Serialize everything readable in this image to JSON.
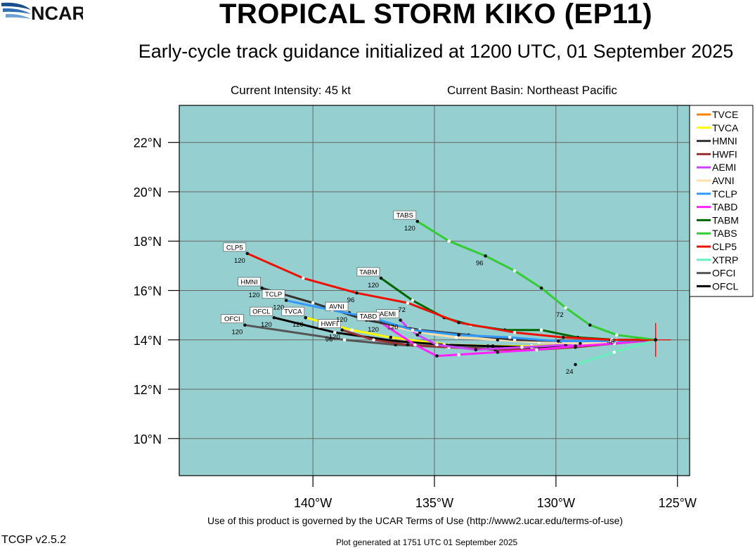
{
  "header": {
    "title": "TROPICAL STORM KIKO (EP11)",
    "subtitle": "Early-cycle track guidance initialized at 1200 UTC, 01 September 2025",
    "intensity": "Current Intensity: 45 kt",
    "basin": "Current Basin: Northeast Pacific"
  },
  "footer": {
    "terms": "Use of this product is governed by the UCAR Terms of Use (http://www2.ucar.edu/terms-of-use)",
    "version": "TCGP v2.5.2",
    "generated": "Plot generated at 1751 UTC   01 September 2025",
    "logo": "NCAR"
  },
  "colors": {
    "ocean": "#96cfcf",
    "grid": "#666666",
    "initial_marker": "#ff0000"
  },
  "chart_data": {
    "type": "line",
    "x_axis": {
      "range": [
        -145.5,
        -124.5
      ],
      "ticks": [
        -140,
        -135,
        -130,
        -125
      ],
      "tick_labels": [
        "140°W",
        "135°W",
        "130°W",
        "125°W"
      ]
    },
    "y_axis": {
      "range": [
        8.5,
        23.5
      ],
      "ticks": [
        10,
        12,
        14,
        16,
        18,
        20,
        22
      ],
      "tick_labels": [
        "10°N",
        "12°N",
        "14°N",
        "16°N",
        "18°N",
        "20°N",
        "22°N"
      ]
    },
    "grid": true,
    "legend_position": "top-right",
    "initial_position": {
      "lon": -125.9,
      "lat": 14.0
    },
    "series": [
      {
        "name": "TVCE",
        "color": "#ff8000",
        "lon": [
          -125.9,
          -127.6,
          -129.4,
          -131.0,
          -132.6,
          -134.4,
          -136.8,
          -138.4,
          -140.3
        ],
        "lat": [
          14.0,
          13.9,
          13.8,
          13.75,
          13.75,
          13.8,
          14.1,
          14.4,
          14.9
        ],
        "hour_labels": []
      },
      {
        "name": "TVCA",
        "color": "#ffff00",
        "lon": [
          -125.9,
          -127.6,
          -129.4,
          -131.0,
          -132.6,
          -134.4,
          -136.8,
          -138.4,
          -140.3
        ],
        "lat": [
          14.0,
          13.9,
          13.8,
          13.75,
          13.75,
          13.8,
          14.1,
          14.4,
          14.9
        ],
        "hour_labels": [
          {
            "hr": "120",
            "i": 8,
            "box": "TVCA"
          }
        ]
      },
      {
        "name": "HMNI",
        "color": "#333333",
        "lon": [
          -125.9,
          -127.8,
          -129.8,
          -131.7,
          -133.6,
          -135.6,
          -137.8,
          -140.0,
          -142.1
        ],
        "lat": [
          14.0,
          13.95,
          13.95,
          14.0,
          14.2,
          14.4,
          14.8,
          15.5,
          16.1
        ],
        "hour_labels": [
          {
            "hr": "120",
            "i": 8,
            "box": "HMNI"
          }
        ]
      },
      {
        "name": "HWFI",
        "color": "#993333",
        "lon": [
          -125.9,
          -127.6,
          -129.2,
          -130.8,
          -132.5,
          -134.4,
          -136.1,
          -137.5,
          -138.8
        ],
        "lat": [
          14.0,
          13.85,
          13.7,
          13.6,
          13.6,
          13.7,
          13.8,
          14.0,
          14.4
        ],
        "hour_labels": [
          {
            "hr": "120",
            "i": 8,
            "box": "HWFI"
          }
        ]
      },
      {
        "name": "AEMI",
        "color": "#cc44ff",
        "lon": [
          -125.9,
          -127.7,
          -129.6,
          -131.4,
          -133.3,
          -134.9,
          -135.7,
          -136.1,
          -136.4
        ],
        "lat": [
          14.0,
          13.9,
          13.8,
          13.7,
          13.6,
          13.8,
          14.2,
          14.5,
          14.8
        ],
        "hour_labels": [
          {
            "hr": "120",
            "i": 8,
            "box": "AEMI"
          }
        ]
      },
      {
        "name": "AVNI",
        "color": "#ffdead",
        "lon": [
          -125.9,
          -127.4,
          -129.0,
          -130.7,
          -132.4,
          -134.1,
          -135.6,
          -137.0,
          -138.5
        ],
        "lat": [
          14.0,
          13.9,
          13.85,
          13.9,
          14.0,
          14.1,
          14.3,
          14.6,
          15.1
        ],
        "hour_labels": [
          {
            "hr": "120",
            "i": 8,
            "box": "AVNI"
          }
        ]
      },
      {
        "name": "TCLP",
        "color": "#3399ff",
        "lon": [
          -125.9,
          -127.8,
          -129.9,
          -131.9,
          -134.0,
          -135.9,
          -137.6,
          -139.2,
          -141.1
        ],
        "lat": [
          14.0,
          13.95,
          13.95,
          14.1,
          14.2,
          14.4,
          14.9,
          15.2,
          15.6
        ],
        "hour_labels": [
          {
            "hr": "120",
            "i": 8,
            "box": "TCLP"
          }
        ]
      },
      {
        "name": "TABD",
        "color": "#ff22ff",
        "lon": [
          -125.9,
          -127.6,
          -129.2,
          -130.8,
          -132.4,
          -134.0,
          -134.9,
          -135.8,
          -137.2
        ],
        "lat": [
          14.0,
          13.85,
          13.75,
          13.6,
          13.5,
          13.4,
          13.35,
          13.8,
          14.7
        ],
        "hour_labels": [
          {
            "hr": "120",
            "i": 8,
            "box": "TABD"
          }
        ]
      },
      {
        "name": "TABM",
        "color": "#006600",
        "lon": [
          -125.9,
          -127.5,
          -129.1,
          -130.6,
          -132.1,
          -133.5,
          -134.6,
          -135.9,
          -137.2
        ],
        "lat": [
          14.0,
          14.0,
          14.1,
          14.4,
          14.4,
          14.6,
          14.9,
          15.6,
          16.5
        ],
        "hour_labels": [
          {
            "hr": "120",
            "i": 8,
            "box": "TABM"
          }
        ]
      },
      {
        "name": "TABS",
        "color": "#33cc33",
        "lon": [
          -125.9,
          -127.5,
          -128.6,
          -129.6,
          -130.6,
          -131.7,
          -132.9,
          -134.4,
          -135.7
        ],
        "lat": [
          14.0,
          14.2,
          14.6,
          15.3,
          16.1,
          16.8,
          17.4,
          18.0,
          18.8
        ],
        "hour_labels": [
          {
            "hr": "120",
            "i": 8,
            "box": "TABS"
          },
          {
            "hr": "96",
            "i": 6
          },
          {
            "hr": "72",
            "i": 3
          },
          {
            "hr": "48",
            "i": 1
          }
        ]
      },
      {
        "name": "CLP5",
        "color": "#ee1100",
        "lon": [
          -125.9,
          -127.7,
          -129.7,
          -131.7,
          -134.0,
          -136.1,
          -138.2,
          -140.4,
          -142.7
        ],
        "lat": [
          14.0,
          14.0,
          14.1,
          14.3,
          14.7,
          15.5,
          15.9,
          16.5,
          17.5
        ],
        "hour_labels": [
          {
            "hr": "120",
            "i": 8,
            "box": "CLP5"
          },
          {
            "hr": "96",
            "i": 6
          },
          {
            "hr": "72",
            "i": 5
          }
        ]
      },
      {
        "name": "XTRP",
        "color": "#66eebb",
        "lon": [
          -125.9,
          -127.6,
          -129.2
        ],
        "lat": [
          14.0,
          13.5,
          13.0
        ],
        "hour_labels": [
          {
            "hr": "24",
            "i": 2
          }
        ]
      },
      {
        "name": "OFCI",
        "color": "#555555",
        "lon": [
          -125.9,
          -127.6,
          -129.3,
          -130.9,
          -132.6,
          -134.5,
          -136.6,
          -138.7,
          -142.8
        ],
        "lat": [
          14.0,
          13.85,
          13.75,
          13.65,
          13.65,
          13.7,
          13.8,
          14.0,
          14.6
        ],
        "hour_labels": [
          {
            "hr": "120",
            "i": 8,
            "box": "OFCI"
          }
        ]
      },
      {
        "name": "OFCL",
        "color": "#000000",
        "lon": [
          -125.9,
          -127.6,
          -129.3,
          -131.0,
          -132.8,
          -134.6,
          -136.6,
          -139.1,
          -141.6
        ],
        "lat": [
          14.0,
          13.9,
          13.8,
          13.7,
          13.75,
          13.8,
          13.95,
          14.3,
          14.9
        ],
        "hour_labels": [
          {
            "hr": "120",
            "i": 8,
            "box": "OFCL"
          },
          {
            "hr": "96",
            "i": 7
          }
        ]
      }
    ]
  }
}
